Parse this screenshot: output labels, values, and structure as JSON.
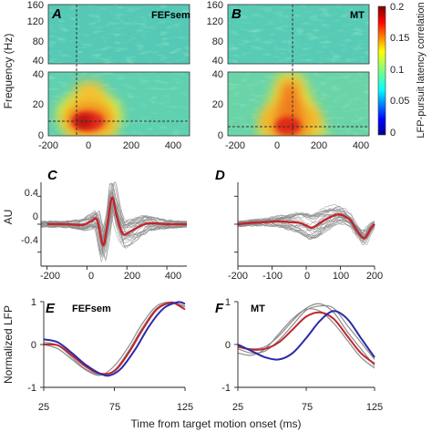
{
  "panels": {
    "A": {
      "letter": "A",
      "name": "FEFsem"
    },
    "B": {
      "letter": "B",
      "name": "MT"
    },
    "C": {
      "letter": "C"
    },
    "D": {
      "letter": "D"
    },
    "E": {
      "letter": "E",
      "name": "FEFsem"
    },
    "F": {
      "letter": "F",
      "name": "MT"
    }
  },
  "axes": {
    "freq_ylabel": "Frequency (Hz)",
    "au_ylabel": "AU",
    "lfp_ylabel": "Normalized LFP",
    "xlabel": "Time from target motion onset (ms)",
    "colorbar_label": "LFP-pursuit latency correlation",
    "freq_top_ticks": [
      "160",
      "120",
      "80",
      "40"
    ],
    "freq_bot_ticks": [
      "40",
      "20",
      "0"
    ],
    "time_ticks_AB": [
      "-200",
      "0",
      "200",
      "400"
    ],
    "time_ticks_C": [
      "-200",
      "0",
      "200",
      "400"
    ],
    "time_ticks_D": [
      "-200",
      "-100",
      "0",
      "100",
      "200"
    ],
    "au_ticks": [
      "0.4",
      "0",
      "-0.4"
    ],
    "lfp_ticks": [
      "1",
      "0",
      "-1"
    ],
    "ms_ticks": [
      "25",
      "75",
      "125"
    ],
    "cbar_ticks": [
      "0.2",
      "0.15",
      "0.1",
      "0.05",
      "0"
    ]
  },
  "colors": {
    "red": "#c0262b",
    "blue": "#2a2aa8",
    "gray": "#8c8c8c",
    "dash": "#333333"
  },
  "chart_data": [
    {
      "panel": "A",
      "type": "heatmap",
      "title": "FEFsem",
      "xlabel": "",
      "ylabel": "Frequency (Hz)",
      "xlim": [
        -250,
        500
      ],
      "ylim_top": [
        40,
        160
      ],
      "ylim_bottom": [
        0,
        40
      ],
      "peak": {
        "time_ms": 90,
        "freq_hz": 12,
        "value": 0.2
      },
      "dashed_time_ms": 75,
      "dashed_freq_hz": 9
    },
    {
      "panel": "B",
      "type": "heatmap",
      "title": "MT",
      "xlabel": "",
      "ylabel": "",
      "xlim": [
        -250,
        500
      ],
      "ylim_top": [
        40,
        160
      ],
      "ylim_bottom": [
        0,
        40
      ],
      "peak": {
        "time_ms": 80,
        "freq_hz": 10,
        "value": 0.2
      },
      "dashed_time_ms": 75,
      "dashed_freq_hz": 4
    },
    {
      "panel": "colorbar",
      "type": "heatmap",
      "range": [
        0,
        0.2
      ],
      "label": "LFP-pursuit latency correlation"
    },
    {
      "panel": "C",
      "type": "line",
      "ylabel": "AU",
      "xlim": [
        -230,
        500
      ],
      "ylim": [
        -0.6,
        0.6
      ],
      "mean": {
        "x": [
          -200,
          -100,
          -20,
          20,
          50,
          80,
          100,
          125,
          150,
          180,
          220,
          300,
          400,
          500
        ],
        "y": [
          0.0,
          0.0,
          -0.01,
          0.04,
          0.06,
          -0.3,
          -0.05,
          0.38,
          0.1,
          -0.14,
          -0.1,
          0.01,
          0.0,
          0.0
        ]
      }
    },
    {
      "panel": "D",
      "type": "line",
      "ylabel": "",
      "xlim": [
        -200,
        200
      ],
      "ylim": [
        -0.6,
        0.6
      ],
      "mean": {
        "x": [
          -200,
          -160,
          -120,
          -80,
          -50,
          -20,
          0,
          15,
          30,
          50,
          70,
          90,
          110,
          130,
          150,
          170,
          190,
          200
        ],
        "y": [
          0.0,
          0.02,
          0.03,
          0.04,
          0.03,
          0.02,
          -0.02,
          -0.05,
          -0.02,
          0.05,
          0.1,
          0.14,
          0.12,
          0.05,
          -0.1,
          -0.2,
          -0.05,
          0.0
        ]
      }
    },
    {
      "panel": "E",
      "type": "line",
      "title": "FEFsem",
      "ylabel": "Normalized LFP",
      "xlim": [
        25,
        125
      ],
      "ylim": [
        -1,
        1
      ],
      "series": [
        {
          "name": "red",
          "x": [
            25,
            35,
            45,
            55,
            65,
            75,
            85,
            95,
            105,
            115,
            120,
            125
          ],
          "y": [
            0.0,
            -0.02,
            -0.25,
            -0.52,
            -0.68,
            -0.62,
            -0.2,
            0.35,
            0.82,
            0.98,
            0.92,
            0.82
          ]
        },
        {
          "name": "blue",
          "x": [
            25,
            35,
            45,
            55,
            65,
            72,
            80,
            90,
            100,
            110,
            120,
            125
          ],
          "y": [
            0.12,
            0.05,
            -0.2,
            -0.48,
            -0.68,
            -0.72,
            -0.55,
            -0.1,
            0.45,
            0.85,
            0.99,
            0.95
          ]
        },
        {
          "name": "gray1",
          "x": [
            25,
            35,
            45,
            55,
            65,
            75,
            85,
            95,
            105,
            115,
            125
          ],
          "y": [
            0.05,
            -0.02,
            -0.3,
            -0.58,
            -0.7,
            -0.6,
            -0.15,
            0.4,
            0.85,
            0.98,
            0.9
          ]
        },
        {
          "name": "gray2",
          "x": [
            25,
            35,
            45,
            55,
            65,
            75,
            85,
            95,
            105,
            115,
            125
          ],
          "y": [
            0.0,
            -0.1,
            -0.35,
            -0.6,
            -0.72,
            -0.5,
            -0.05,
            0.5,
            0.9,
            0.99,
            0.88
          ]
        }
      ]
    },
    {
      "panel": "F",
      "type": "line",
      "title": "MT",
      "ylabel": "",
      "xlim": [
        25,
        125
      ],
      "ylim": [
        -1,
        1
      ],
      "series": [
        {
          "name": "red",
          "x": [
            25,
            35,
            45,
            55,
            65,
            75,
            85,
            95,
            105,
            115,
            125
          ],
          "y": [
            -0.05,
            -0.12,
            -0.1,
            0.05,
            0.35,
            0.65,
            0.75,
            0.6,
            0.2,
            -0.2,
            -0.45
          ]
        },
        {
          "name": "blue",
          "x": [
            25,
            35,
            45,
            55,
            65,
            75,
            85,
            95,
            105,
            115,
            125
          ],
          "y": [
            0.0,
            -0.15,
            -0.3,
            -0.35,
            -0.2,
            0.15,
            0.55,
            0.78,
            0.6,
            0.15,
            -0.3
          ]
        },
        {
          "name": "gray1",
          "x": [
            25,
            35,
            45,
            55,
            65,
            75,
            85,
            95,
            105,
            115,
            125
          ],
          "y": [
            -0.05,
            -0.1,
            -0.05,
            0.2,
            0.55,
            0.85,
            0.95,
            0.75,
            0.3,
            -0.1,
            -0.5
          ]
        },
        {
          "name": "gray2",
          "x": [
            25,
            35,
            45,
            55,
            65,
            75,
            85,
            95,
            105,
            115,
            125
          ],
          "y": [
            -0.1,
            -0.2,
            -0.15,
            0.1,
            0.45,
            0.8,
            0.9,
            0.85,
            0.45,
            0.05,
            -0.35
          ]
        },
        {
          "name": "gray3",
          "x": [
            25,
            35,
            45,
            55,
            65,
            75,
            85,
            95,
            105,
            115,
            125
          ],
          "y": [
            -0.2,
            -0.25,
            -0.1,
            0.25,
            0.6,
            0.82,
            0.78,
            0.5,
            0.1,
            -0.3,
            -0.55
          ]
        }
      ]
    }
  ]
}
